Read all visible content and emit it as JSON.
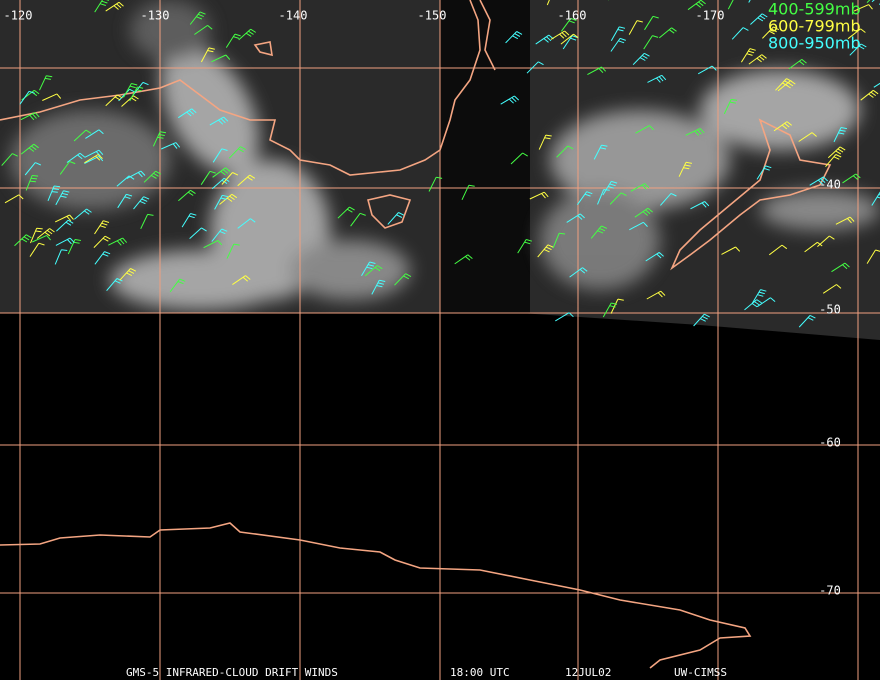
{
  "map": {
    "longitude_labels": [
      "-120",
      "-130",
      "-140",
      "-150",
      "-160",
      "-170"
    ],
    "latitude_labels": [
      "-40",
      "-50",
      "-60",
      "-70"
    ],
    "legend": [
      "400-599mb",
      "600-799mb",
      "800-950mb"
    ],
    "footer": [
      "GMS-5 INFRARED-CLOUD DRIFT WINDS",
      "18:00 UTC",
      "12JUL02",
      "UW-CIMSS"
    ]
  }
}
